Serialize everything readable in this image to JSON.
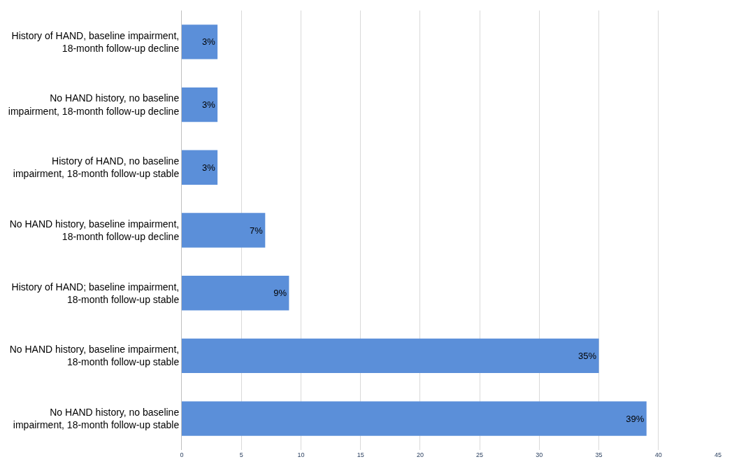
{
  "chart_data": {
    "type": "bar",
    "orientation": "horizontal",
    "categories": [
      "History of HAND, baseline impairment, 18-month follow-up decline",
      "No HAND history, no baseline impairment, 18-month follow-up decline",
      "History of HAND, no baseline impairment, 18-month follow-up stable",
      "No HAND history, baseline impairment, 18-month follow-up decline",
      "History of HAND; baseline impairment, 18-month follow-up stable",
      "No HAND history, baseline impairment, 18-month follow-up stable",
      "No HAND history, no baseline impairment, 18-month follow-up stable"
    ],
    "values": [
      3,
      3,
      3,
      7,
      9,
      35,
      39
    ],
    "value_labels": [
      "3%",
      "3%",
      "3%",
      "7%",
      "9%",
      "35%",
      "39%"
    ],
    "color": "#5b8fd9",
    "xlim": [
      0,
      45
    ],
    "xticks": [
      0,
      5,
      10,
      15,
      20,
      25,
      30,
      35,
      40,
      45
    ],
    "grid": "x"
  }
}
